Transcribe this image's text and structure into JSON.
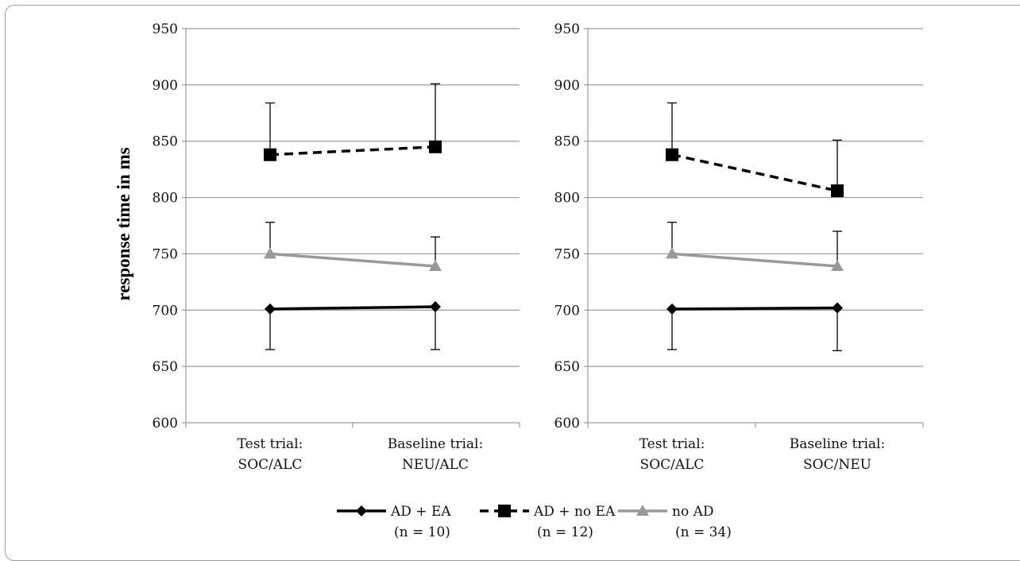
{
  "chart_data": [
    {
      "type": "line",
      "title": "",
      "ylabel": "response time in ms",
      "ylim": [
        600,
        950
      ],
      "yticks": [
        600,
        650,
        700,
        750,
        800,
        850,
        900,
        950
      ],
      "grid": true,
      "categories": [
        {
          "line1": "Test trial:",
          "line2": "SOC/ALC"
        },
        {
          "line1": "Baseline trial:",
          "line2": "NEU/ALC"
        }
      ],
      "series": [
        {
          "name": "AD + EA",
          "n": "(n = 10)",
          "values": [
            701,
            703
          ],
          "err_low": [
            665,
            665
          ],
          "err_high": [
            null,
            null
          ],
          "color": "#000000",
          "dash": "solid",
          "marker": "diamond"
        },
        {
          "name": "AD + no EA",
          "n": "(n = 12)",
          "values": [
            838,
            845
          ],
          "err_low": [
            null,
            null
          ],
          "err_high": [
            884,
            901
          ],
          "color": "#000000",
          "dash": "dashed",
          "marker": "square"
        },
        {
          "name": "no AD",
          "n": "(n = 34)",
          "values": [
            750,
            739
          ],
          "err_low": [
            null,
            null
          ],
          "err_high": [
            778,
            765
          ],
          "color": "#999999",
          "dash": "solid",
          "marker": "triangle"
        }
      ]
    },
    {
      "type": "line",
      "title": "",
      "ylabel": "",
      "ylim": [
        600,
        950
      ],
      "yticks": [
        600,
        650,
        700,
        750,
        800,
        850,
        900,
        950
      ],
      "grid": true,
      "categories": [
        {
          "line1": "Test trial:",
          "line2": "SOC/ALC"
        },
        {
          "line1": "Baseline trial:",
          "line2": "SOC/NEU"
        }
      ],
      "series": [
        {
          "name": "AD + EA",
          "n": "(n = 10)",
          "values": [
            701,
            702
          ],
          "err_low": [
            665,
            664
          ],
          "err_high": [
            null,
            null
          ],
          "color": "#000000",
          "dash": "solid",
          "marker": "diamond"
        },
        {
          "name": "AD + no EA",
          "n": "(n = 12)",
          "values": [
            838,
            806
          ],
          "err_low": [
            null,
            null
          ],
          "err_high": [
            884,
            851
          ],
          "color": "#000000",
          "dash": "dashed",
          "marker": "square"
        },
        {
          "name": "no AD",
          "n": "(n = 34)",
          "values": [
            750,
            739
          ],
          "err_low": [
            null,
            null
          ],
          "err_high": [
            778,
            770
          ],
          "color": "#999999",
          "dash": "solid",
          "marker": "triangle"
        }
      ]
    }
  ],
  "legend": {
    "items": [
      {
        "name": "AD + EA",
        "n": "(n = 10)"
      },
      {
        "name": "AD + no EA",
        "n": "(n = 12)"
      },
      {
        "name": "no AD",
        "n": "(n = 34)"
      }
    ]
  }
}
